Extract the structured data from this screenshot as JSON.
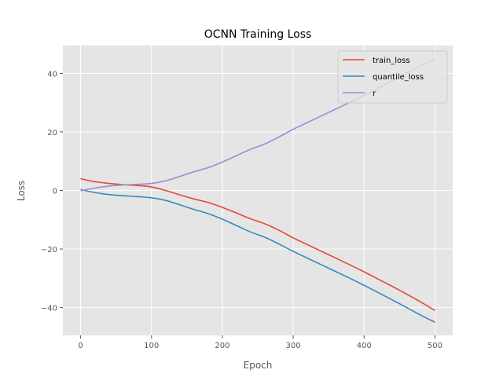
{
  "chart_data": {
    "type": "line",
    "title": "OCNN Training Loss",
    "xlabel": "Epoch",
    "ylabel": "Loss",
    "xlim": [
      -25,
      525
    ],
    "ylim": [
      -49.5,
      49.5
    ],
    "xticks": [
      0,
      100,
      200,
      300,
      400,
      500
    ],
    "yticks": [
      -40,
      -20,
      0,
      20,
      40
    ],
    "xtick_labels": [
      "0",
      "100",
      "200",
      "300",
      "400",
      "500"
    ],
    "ytick_labels": [
      "−40",
      "−20",
      "0",
      "20",
      "40"
    ],
    "grid": true,
    "legend_position": "top-right",
    "x": [
      0,
      20,
      40,
      60,
      80,
      100,
      120,
      140,
      160,
      180,
      200,
      220,
      240,
      260,
      280,
      300,
      320,
      340,
      360,
      380,
      400,
      420,
      440,
      460,
      480,
      500
    ],
    "series": [
      {
        "name": "train_loss",
        "color": "#e24a33",
        "values": [
          4.0,
          3.0,
          2.4,
          2.0,
          1.7,
          1.2,
          0.0,
          -1.5,
          -2.9,
          -4.1,
          -5.8,
          -7.7,
          -9.7,
          -11.4,
          -13.6,
          -16.2,
          -18.5,
          -20.8,
          -23.1,
          -25.4,
          -27.8,
          -30.3,
          -32.8,
          -35.4,
          -38.1,
          -41.0
        ]
      },
      {
        "name": "quantile_loss",
        "color": "#348abd",
        "values": [
          0.3,
          -0.7,
          -1.4,
          -1.8,
          -2.1,
          -2.5,
          -3.4,
          -4.9,
          -6.5,
          -7.9,
          -9.8,
          -12.0,
          -14.2,
          -16.0,
          -18.3,
          -20.8,
          -23.1,
          -25.4,
          -27.7,
          -30.0,
          -32.4,
          -34.9,
          -37.4,
          -40.0,
          -42.6,
          -45.0
        ]
      },
      {
        "name": "r",
        "color": "#988ed5",
        "values": [
          -0.1,
          0.8,
          1.5,
          1.9,
          2.1,
          2.4,
          3.3,
          4.8,
          6.4,
          7.8,
          9.7,
          11.9,
          14.1,
          15.9,
          18.3,
          20.9,
          23.2,
          25.5,
          27.8,
          30.1,
          32.5,
          35.0,
          37.5,
          40.1,
          42.6,
          45.0
        ]
      }
    ]
  }
}
